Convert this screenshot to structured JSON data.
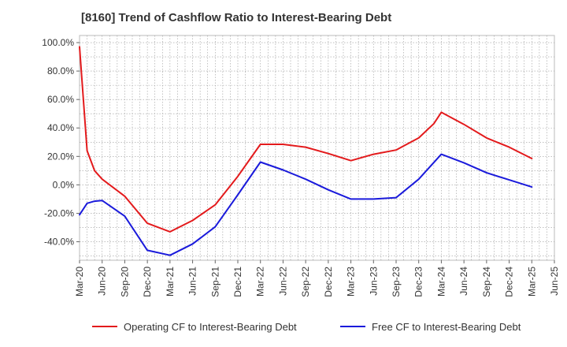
{
  "chart_data": {
    "type": "line",
    "title": "[8160]  Trend of Cashflow Ratio to Interest-Bearing Debt",
    "xlabel": "",
    "ylabel": "",
    "x_ticks": [
      "Mar-20",
      "Jun-20",
      "Sep-20",
      "Dec-20",
      "Mar-21",
      "Jun-21",
      "Sep-21",
      "Dec-21",
      "Mar-22",
      "Jun-22",
      "Sep-22",
      "Dec-22",
      "Mar-23",
      "Jun-23",
      "Sep-23",
      "Dec-23",
      "Mar-24",
      "Jun-24",
      "Sep-24",
      "Dec-24",
      "Mar-25",
      "Jun-25"
    ],
    "y_ticks": [
      "100.0%",
      "80.0%",
      "60.0%",
      "40.0%",
      "20.0%",
      "0.0%",
      "-20.0%",
      "-40.0%"
    ],
    "y_tick_values": [
      100,
      80,
      60,
      40,
      20,
      0,
      -20,
      -40
    ],
    "ylim": [
      -53,
      105
    ],
    "grid": true,
    "legend_position": "bottom",
    "series": [
      {
        "name": "Operating CF to Interest-Bearing Debt",
        "color": "#e31a1c",
        "points": [
          [
            "Mar-20",
            97
          ],
          [
            "Apr-20",
            24
          ],
          [
            "May-20",
            10
          ],
          [
            "Jun-20",
            4
          ],
          [
            "Sep-20",
            -8
          ],
          [
            "Dec-20",
            -27
          ],
          [
            "Mar-21",
            -33
          ],
          [
            "Jun-21",
            -25
          ],
          [
            "Sep-21",
            -14
          ],
          [
            "Dec-21",
            6
          ],
          [
            "Mar-22",
            28.5
          ],
          [
            "Jun-22",
            28.5
          ],
          [
            "Sep-22",
            26.5
          ],
          [
            "Dec-22",
            22
          ],
          [
            "Mar-23",
            17
          ],
          [
            "Jun-23",
            21.5
          ],
          [
            "Sep-23",
            24.5
          ],
          [
            "Dec-23",
            33
          ],
          [
            "Feb-24",
            43
          ],
          [
            "Mar-24",
            51
          ],
          [
            "Jun-24",
            42.5
          ],
          [
            "Sep-24",
            33
          ],
          [
            "Dec-24",
            26.5
          ],
          [
            "Mar-25",
            18.5
          ]
        ]
      },
      {
        "name": "Free CF to Interest-Bearing Debt",
        "color": "#1a1adb",
        "points": [
          [
            "Mar-20",
            -21
          ],
          [
            "Apr-20",
            -13
          ],
          [
            "May-20",
            -11.5
          ],
          [
            "Jun-20",
            -11
          ],
          [
            "Sep-20",
            -22
          ],
          [
            "Dec-20",
            -46
          ],
          [
            "Mar-21",
            -49.5
          ],
          [
            "Jun-21",
            -41.5
          ],
          [
            "Sep-21",
            -29.5
          ],
          [
            "Dec-21",
            -7
          ],
          [
            "Mar-22",
            16
          ],
          [
            "Jun-22",
            10.5
          ],
          [
            "Sep-22",
            4
          ],
          [
            "Dec-22",
            -3.5
          ],
          [
            "Mar-23",
            -10
          ],
          [
            "Jun-23",
            -10
          ],
          [
            "Sep-23",
            -9
          ],
          [
            "Dec-23",
            4
          ],
          [
            "Mar-24",
            21.5
          ],
          [
            "Jun-24",
            15.5
          ],
          [
            "Sep-24",
            8.5
          ],
          [
            "Dec-24",
            3.5
          ],
          [
            "Mar-25",
            -1.5
          ]
        ]
      }
    ]
  }
}
